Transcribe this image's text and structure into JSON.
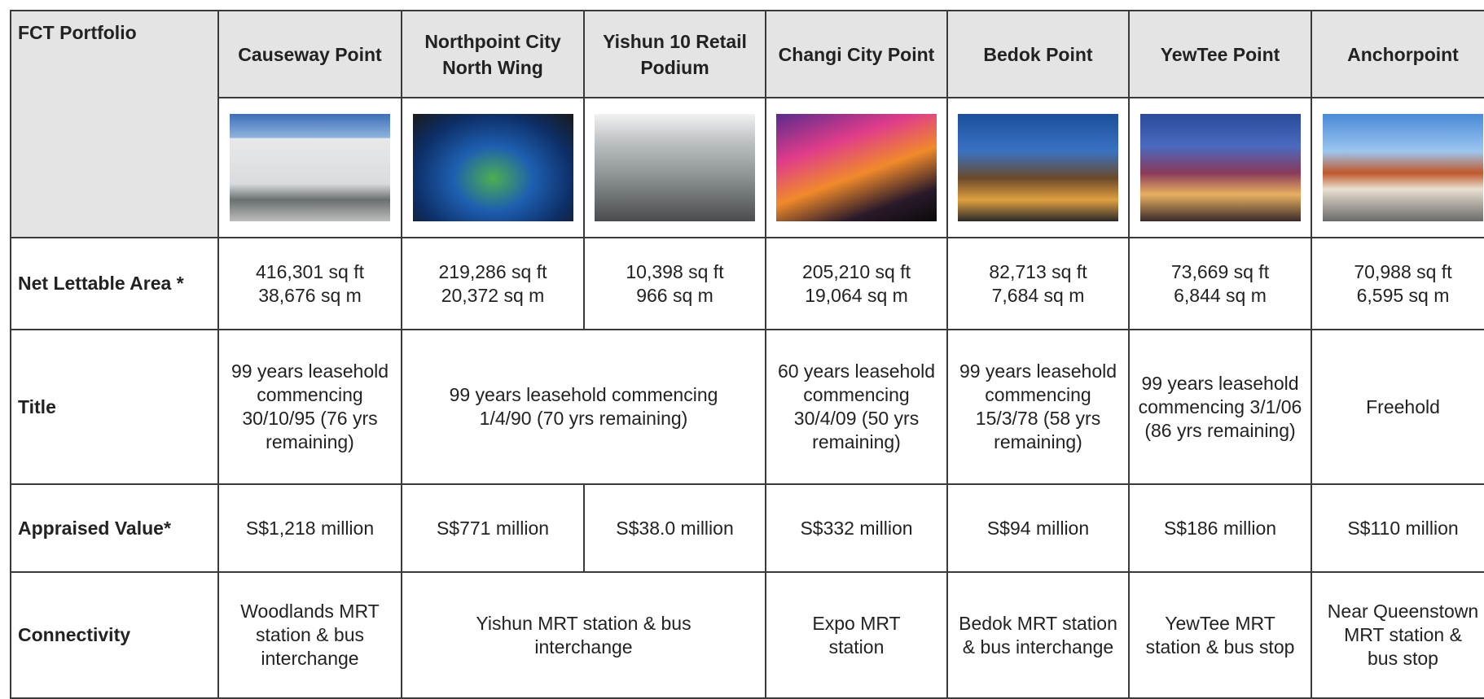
{
  "table": {
    "corner": "FCT Portfolio",
    "columns": [
      "Causeway Point",
      "Northpoint City North Wing",
      "Yishun 10 Retail Podium",
      "Changi City Point",
      "Bedok Point",
      "YewTee Point",
      "Anchorpoint"
    ],
    "rows": [
      {
        "label": "Net Lettable Area *",
        "cells": [
          [
            "416,301 sq ft",
            "38,676 sq m"
          ],
          [
            "219,286 sq ft",
            "20,372 sq m"
          ],
          [
            "10,398 sq ft",
            "966 sq m"
          ],
          [
            "205,210 sq ft",
            "19,064 sq m"
          ],
          [
            "82,713 sq ft",
            "7,684 sq m"
          ],
          [
            "73,669 sq ft",
            "6,844 sq m"
          ],
          [
            "70,988 sq ft",
            "6,595 sq m"
          ]
        ]
      },
      {
        "label": "Title",
        "cells": [
          "99 years leasehold commencing 30/10/95  (76 yrs remaining)",
          "99 years leasehold commencing 1/4/90  (70 yrs remaining)",
          "60 years leasehold commencing 30/4/09  (50 yrs remaining)",
          "99 years leasehold commencing 15/3/78  (58 yrs remaining)",
          "99 years leasehold commencing 3/1/06  (86 yrs remaining)",
          "Freehold"
        ]
      },
      {
        "label": "Appraised Value*",
        "cells": [
          "S$1,218 million",
          "S$771 million",
          "S$38.0 million",
          "S$332 million",
          "S$94 million",
          "S$186 million",
          "S$110 million"
        ]
      },
      {
        "label": "Connectivity",
        "cells": [
          "Woodlands MRT station &  bus interchange",
          "Yishun MRT station &  bus interchange",
          "Expo MRT station",
          "Bedok MRT station & bus interchange",
          "YewTee MRT station &  bus stop",
          "Near Queenstown MRT station & bus stop"
        ]
      }
    ]
  }
}
